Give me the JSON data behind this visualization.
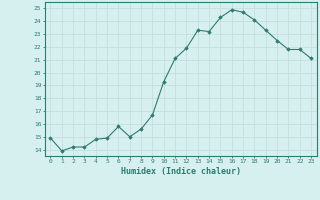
{
  "x": [
    0,
    1,
    2,
    3,
    4,
    5,
    6,
    7,
    8,
    9,
    10,
    11,
    12,
    13,
    14,
    15,
    16,
    17,
    18,
    19,
    20,
    21,
    22,
    23
  ],
  "y": [
    14.9,
    13.9,
    14.2,
    14.2,
    14.8,
    14.9,
    15.8,
    15.0,
    15.6,
    16.7,
    19.3,
    21.1,
    21.9,
    23.3,
    23.2,
    24.3,
    24.9,
    24.7,
    24.1,
    23.3,
    22.5,
    21.8,
    21.8,
    21.1
  ],
  "line_color": "#2d7d6e",
  "marker_color": "#2d7d6e",
  "bg_color": "#d6f0ef",
  "grid_color": "#c8dedc",
  "xlabel": "Humidex (Indice chaleur)",
  "ylabel_ticks": [
    14,
    15,
    16,
    17,
    18,
    19,
    20,
    21,
    22,
    23,
    24,
    25
  ],
  "ylim": [
    13.5,
    25.5
  ],
  "xlim": [
    -0.5,
    23.5
  ],
  "tick_color": "#2d7d6e",
  "font_color": "#2d7d6e",
  "border_color": "#2d7d6e"
}
